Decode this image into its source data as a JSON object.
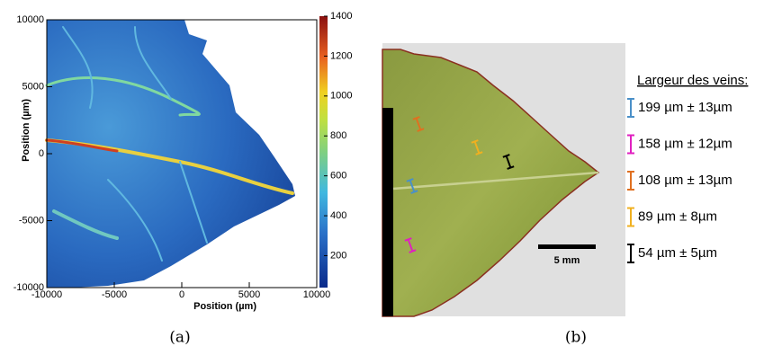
{
  "panel_a": {
    "xlabel": "Position (µm)",
    "ylabel": "Position (µm)",
    "xlim": [
      -10000,
      10000
    ],
    "ylim": [
      -10000,
      10000
    ],
    "xticks": [
      -10000,
      -5000,
      0,
      5000,
      10000
    ],
    "yticks": [
      10000,
      5000,
      0,
      -5000,
      -10000
    ],
    "clim": [
      40,
      1400
    ],
    "cticks": [
      200,
      400,
      600,
      800,
      1000,
      1200,
      1400
    ],
    "caption": "(a)"
  },
  "panel_b": {
    "legend_title": "Largeur des veins:",
    "scale_bar": "5 mm",
    "entries": [
      {
        "color": "#4a90c8",
        "text": "199 µm ± 13µm"
      },
      {
        "color": "#e020c0",
        "text": "158 µm ± 12µm"
      },
      {
        "color": "#e07020",
        "text": "108 µm ± 13µm"
      },
      {
        "color": "#f0b020",
        "text": "89 µm   ±  8µm"
      },
      {
        "color": "#000000",
        "text": "54 µm   ±  5µm"
      }
    ],
    "caption": "(b)"
  }
}
